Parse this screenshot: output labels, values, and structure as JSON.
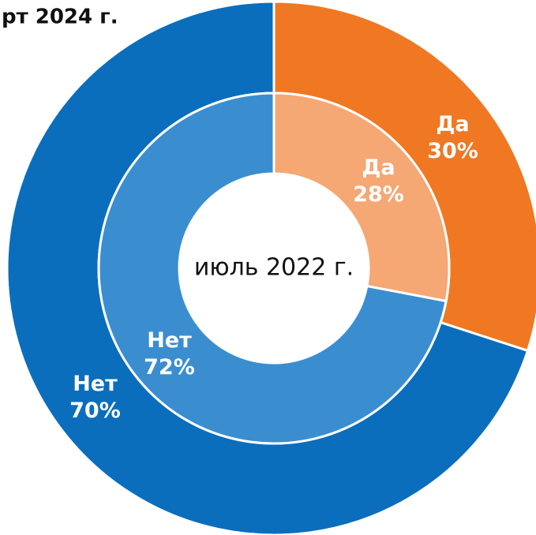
{
  "chart_data": {
    "type": "donut",
    "center_label": "июль 2022 г.",
    "series": [
      {
        "name": "рт 2024 г.",
        "categories": [
          "Да",
          "Нет"
        ],
        "values": [
          30,
          70
        ],
        "value_labels": [
          "30%",
          "70%"
        ],
        "colors": [
          "#f07822",
          "#0a6ebd"
        ]
      },
      {
        "name": "июль 2022 г.",
        "categories": [
          "Да",
          "Нет"
        ],
        "values": [
          28,
          72
        ],
        "value_labels": [
          "28%",
          "72%"
        ],
        "colors": [
          "#f5a774",
          "#3a8ed0"
        ]
      }
    ]
  }
}
